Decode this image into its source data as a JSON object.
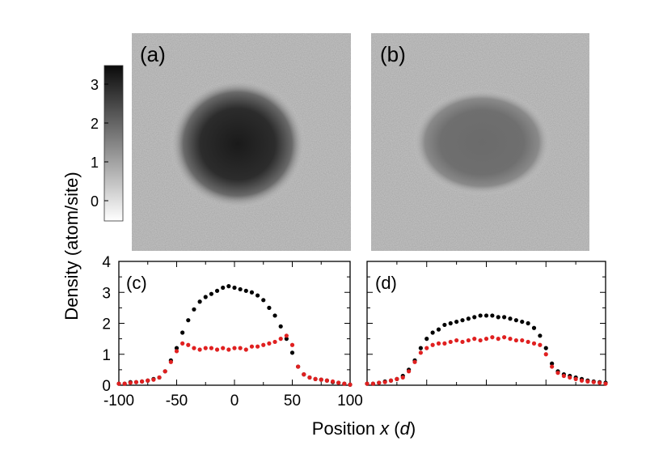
{
  "panels": {
    "a": {
      "label": "(a)"
    },
    "b": {
      "label": "(b)"
    },
    "c": {
      "label": "(c)"
    },
    "d": {
      "label": "(d)"
    }
  },
  "colorbar": {
    "ticks": [
      "3",
      "2",
      "1",
      "0"
    ],
    "range": [
      -0.5,
      3.5
    ],
    "colors": {
      "low": "#ffffff",
      "high": "#0a0a0a"
    }
  },
  "axes": {
    "ylabel": "Density (atom/site)",
    "xlabel_prefix": "Position ",
    "xlabel_var": "x",
    "xlabel_unit": "d"
  },
  "chart_data": [
    {
      "type": "image",
      "panel": "(a)",
      "description_values": {
        "peak_density": 3.2
      },
      "colormap": "gray"
    },
    {
      "type": "image",
      "panel": "(b)",
      "description_values": {
        "peak_density": 2.1
      },
      "colormap": "gray"
    },
    {
      "type": "scatter",
      "panel": "(c)",
      "xlim": [
        -100,
        100
      ],
      "ylim": [
        0,
        4
      ],
      "x_ticks": [
        "-100",
        "-50",
        "0",
        "50",
        "100"
      ],
      "y_ticks": [
        "0",
        "1",
        "2",
        "3",
        "4"
      ],
      "series": [
        {
          "color": "#000000",
          "x": [
            -100,
            -95,
            -90,
            -85,
            -80,
            -75,
            -70,
            -65,
            -60,
            -55,
            -50,
            -45,
            -40,
            -35,
            -30,
            -25,
            -20,
            -15,
            -10,
            -5,
            0,
            5,
            10,
            15,
            20,
            25,
            30,
            35,
            40,
            45,
            50,
            55,
            60,
            65,
            70,
            75,
            80,
            85,
            90,
            95,
            100
          ],
          "y": [
            0.05,
            0.05,
            0.1,
            0.1,
            0.12,
            0.15,
            0.2,
            0.25,
            0.45,
            0.8,
            1.2,
            1.7,
            2.1,
            2.45,
            2.7,
            2.85,
            2.95,
            3.05,
            3.15,
            3.2,
            3.15,
            3.1,
            3.05,
            3.0,
            2.9,
            2.75,
            2.5,
            2.25,
            1.9,
            1.5,
            1.05,
            0.6,
            0.35,
            0.25,
            0.2,
            0.18,
            0.15,
            0.1,
            0.08,
            0.05,
            0.02
          ]
        },
        {
          "color": "#e02020",
          "x": [
            -100,
            -95,
            -90,
            -85,
            -80,
            -75,
            -70,
            -65,
            -60,
            -55,
            -50,
            -45,
            -40,
            -35,
            -30,
            -25,
            -20,
            -15,
            -10,
            -5,
            0,
            5,
            10,
            15,
            20,
            25,
            30,
            35,
            40,
            45,
            50,
            55,
            60,
            65,
            70,
            75,
            80,
            85,
            90,
            95,
            100
          ],
          "y": [
            0.05,
            0.05,
            0.08,
            0.1,
            0.12,
            0.15,
            0.18,
            0.25,
            0.45,
            0.75,
            1.1,
            1.35,
            1.3,
            1.2,
            1.15,
            1.2,
            1.2,
            1.15,
            1.2,
            1.15,
            1.2,
            1.2,
            1.15,
            1.25,
            1.25,
            1.3,
            1.35,
            1.4,
            1.5,
            1.6,
            1.3,
            0.6,
            0.35,
            0.25,
            0.2,
            0.18,
            0.15,
            0.12,
            0.08,
            0.05,
            0.02
          ]
        }
      ]
    },
    {
      "type": "scatter",
      "panel": "(d)",
      "xlim": [
        -100,
        100
      ],
      "ylim": [
        0,
        4
      ],
      "series": [
        {
          "color": "#000000",
          "x": [
            -100,
            -95,
            -90,
            -85,
            -80,
            -75,
            -70,
            -65,
            -60,
            -55,
            -50,
            -45,
            -40,
            -35,
            -30,
            -25,
            -20,
            -15,
            -10,
            -5,
            0,
            5,
            10,
            15,
            20,
            25,
            30,
            35,
            40,
            45,
            50,
            55,
            60,
            65,
            70,
            75,
            80,
            85,
            90,
            95,
            100
          ],
          "y": [
            0.05,
            0.05,
            0.08,
            0.12,
            0.15,
            0.2,
            0.3,
            0.5,
            0.8,
            1.2,
            1.5,
            1.7,
            1.8,
            1.95,
            2.0,
            2.05,
            2.1,
            2.15,
            2.2,
            2.25,
            2.25,
            2.25,
            2.2,
            2.2,
            2.15,
            2.1,
            2.05,
            2.0,
            1.85,
            1.6,
            1.2,
            0.7,
            0.45,
            0.35,
            0.3,
            0.25,
            0.2,
            0.15,
            0.12,
            0.1,
            0.08
          ]
        },
        {
          "color": "#e02020",
          "x": [
            -100,
            -95,
            -90,
            -85,
            -80,
            -75,
            -70,
            -65,
            -60,
            -55,
            -50,
            -45,
            -40,
            -35,
            -30,
            -25,
            -20,
            -15,
            -10,
            -5,
            0,
            5,
            10,
            15,
            20,
            25,
            30,
            35,
            40,
            45,
            50,
            55,
            60,
            65,
            70,
            75,
            80,
            85,
            90,
            95,
            100
          ],
          "y": [
            0.05,
            0.05,
            0.08,
            0.1,
            0.15,
            0.2,
            0.25,
            0.45,
            0.75,
            1.05,
            1.2,
            1.3,
            1.35,
            1.35,
            1.4,
            1.45,
            1.4,
            1.45,
            1.5,
            1.45,
            1.5,
            1.55,
            1.5,
            1.55,
            1.5,
            1.45,
            1.45,
            1.4,
            1.35,
            1.3,
            1.0,
            0.6,
            0.4,
            0.3,
            0.25,
            0.2,
            0.15,
            0.12,
            0.1,
            0.08,
            0.05
          ]
        }
      ]
    }
  ]
}
